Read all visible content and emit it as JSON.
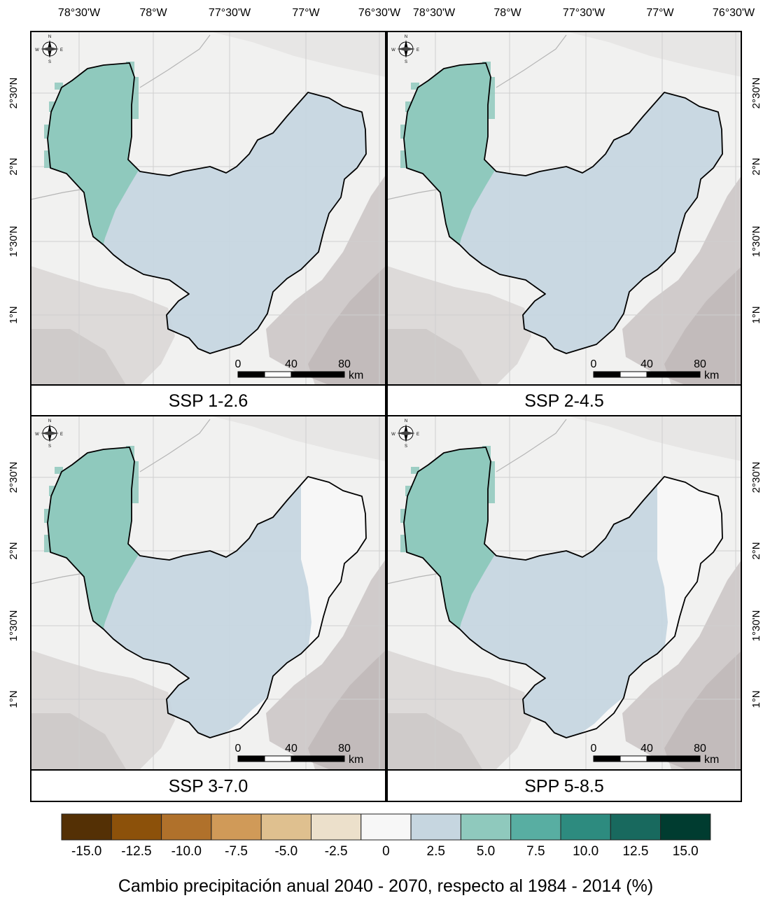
{
  "lon_labels": [
    "78°30'W",
    "78°W",
    "77°30'W",
    "77°W",
    "76°30'W"
  ],
  "lat_labels": [
    "2°30'N",
    "2°N",
    "1°30'N",
    "1°N"
  ],
  "compass": {
    "n": "N",
    "s": "S",
    "e": "E",
    "w": "W"
  },
  "scalebar": {
    "ticks": [
      "0",
      "40",
      "80"
    ],
    "unit": "km"
  },
  "panels": [
    {
      "title": "SSP 1-2.6",
      "classes": {
        "west": 5.0,
        "central": 2.5,
        "east": 2.5
      }
    },
    {
      "title": "SSP 2-4.5",
      "classes": {
        "west": 5.0,
        "central": 2.5,
        "east": 2.5
      }
    },
    {
      "title": "SSP 3-7.0",
      "classes": {
        "west": 5.0,
        "central": 2.5,
        "east": 0
      }
    },
    {
      "title": "SPP 5-8.5",
      "classes": {
        "west": 5.0,
        "central": 2.5,
        "east": 0
      }
    }
  ],
  "legend": {
    "title": "Cambio precipitación anual 2040 - 2070, respecto al 1984 - 2014 (%)",
    "labels": [
      "-15.0",
      "-12.5",
      "-10.0",
      "-7.5",
      "-5.0",
      "-2.5",
      "0",
      "2.5",
      "5.0",
      "7.5",
      "10.0",
      "12.5",
      "15.0"
    ],
    "colors": [
      "#543005",
      "#8c510a",
      "#b0712b",
      "#d09a58",
      "#dfc08f",
      "#ece0cb",
      "#f7f7f7",
      "#c6d6e0",
      "#8fc9bd",
      "#58aea2",
      "#2d8b7f",
      "#18695e",
      "#003c30"
    ]
  },
  "colors": {
    "land": "#f1f1f0",
    "relief": "#a89e9e",
    "border": "#000000"
  }
}
